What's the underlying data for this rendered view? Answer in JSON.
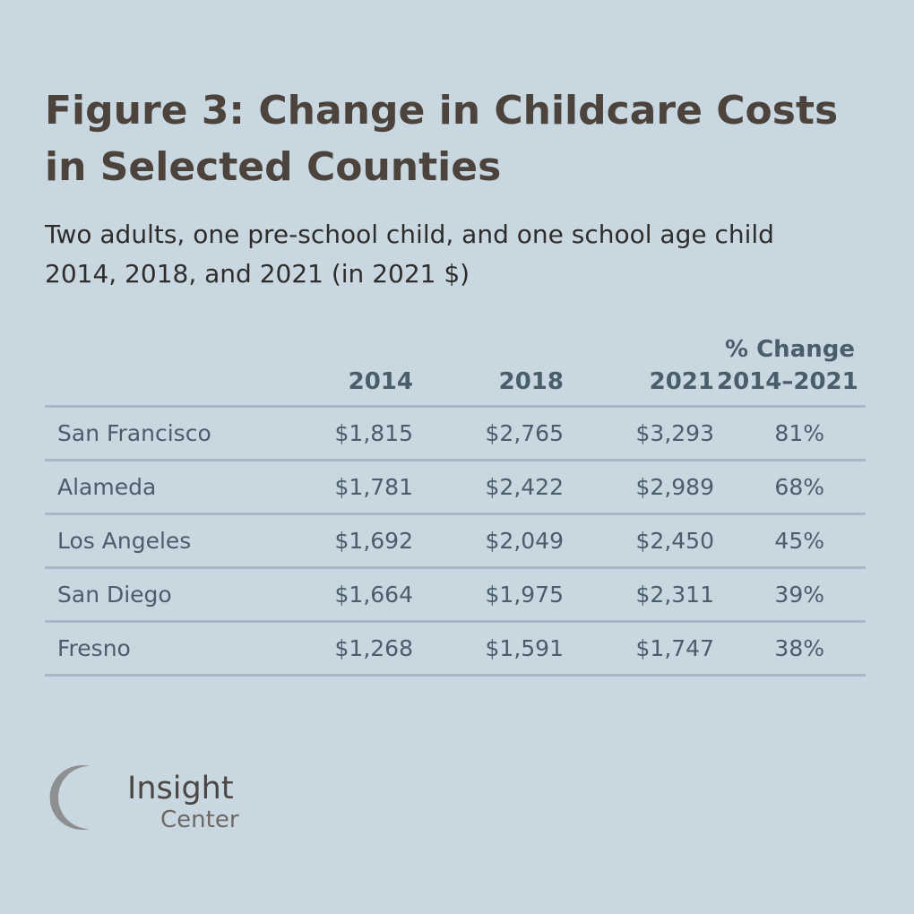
{
  "chart_data": {
    "type": "table",
    "title": "Figure 3: Change in Childcare Costs in Selected Counties",
    "subtitle_lines": [
      "Two adults, one pre-school child, and one school age child",
      "2014, 2018, and 2021 (in 2021 $)"
    ],
    "columns": {
      "county": "",
      "y2014": "2014",
      "y2018": "2018",
      "y2021": "2021",
      "pct_line1": "% Change",
      "pct_line2": "2014–2021"
    },
    "rows": [
      {
        "county": "San Francisco",
        "y2014": "$1,815",
        "y2018": "$2,765",
        "y2021": "$3,293",
        "pct": "81%"
      },
      {
        "county": "Alameda",
        "y2014": "$1,781",
        "y2018": "$2,422",
        "y2021": "$2,989",
        "pct": "68%"
      },
      {
        "county": "Los Angeles",
        "y2014": "$1,692",
        "y2018": "$2,049",
        "y2021": "$2,450",
        "pct": "45%"
      },
      {
        "county": "San Diego",
        "y2014": "$1,664",
        "y2018": "$1,975",
        "y2021": "$2,311",
        "pct": "39%"
      },
      {
        "county": "Fresno",
        "y2014": "$1,268",
        "y2018": "$1,591",
        "y2021": "$1,747",
        "pct": "38%"
      }
    ]
  },
  "logo": {
    "word1": "Insight",
    "word2": "Center",
    "icon": "insight-center-logo-icon"
  },
  "colors": {
    "background": "#c9d8e0",
    "title": "#4c433c",
    "table_text": "#4a5d6a",
    "rule": "#a6b8c3"
  }
}
